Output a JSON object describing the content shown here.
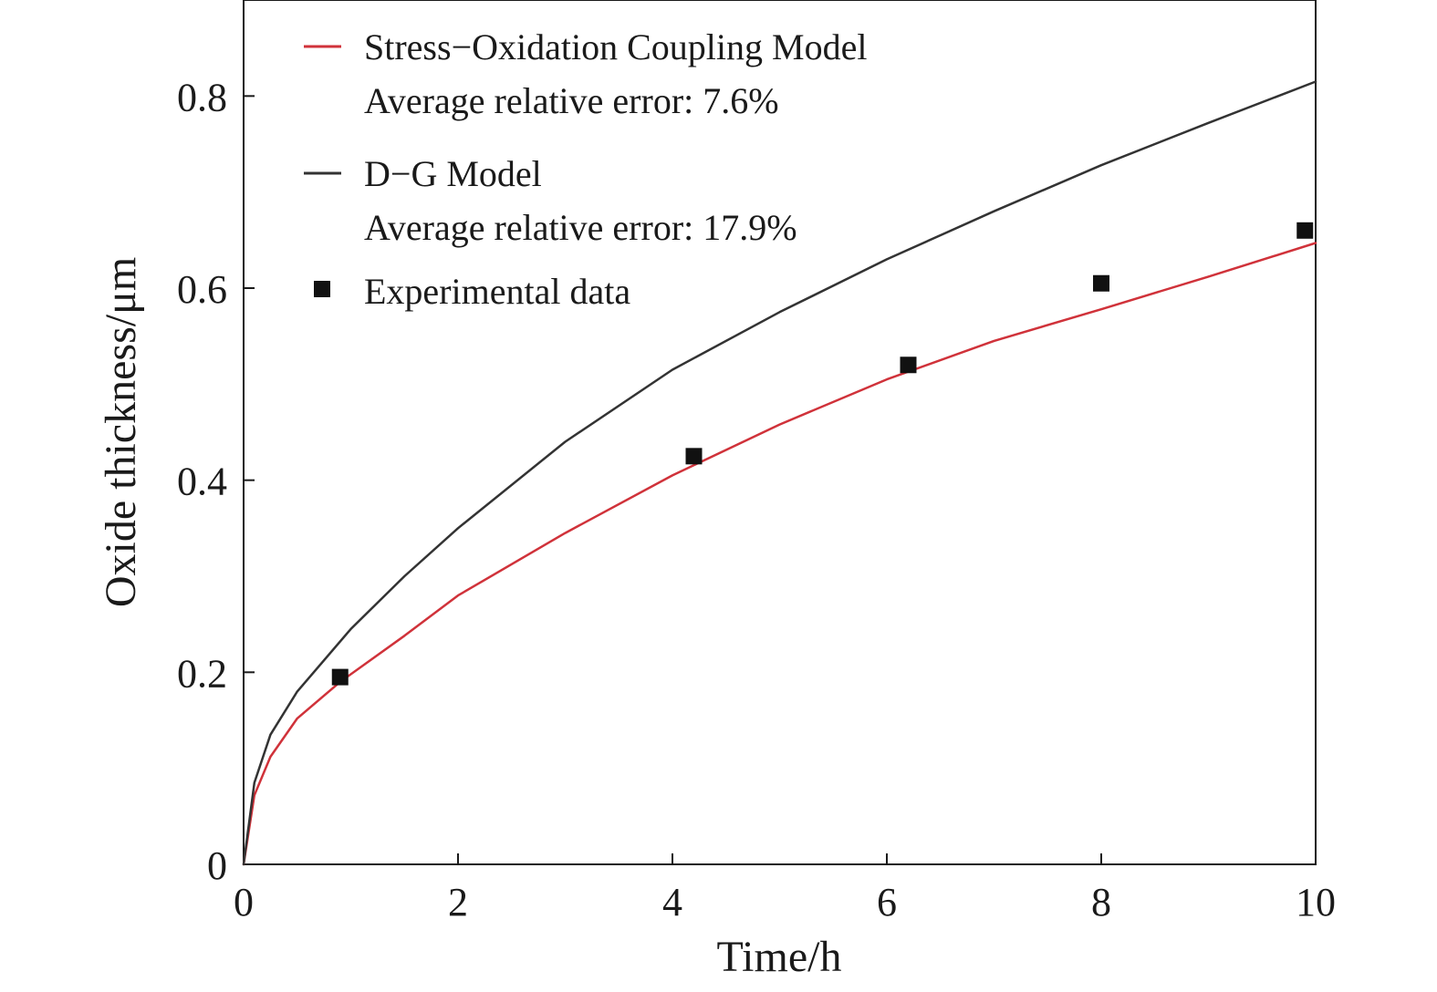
{
  "chart_data": {
    "type": "line",
    "xlabel": "Time/h",
    "ylabel": "Oxide thickness/μm",
    "xlim": [
      0,
      10
    ],
    "ylim": [
      0,
      0.9
    ],
    "x_ticks": [
      0,
      2,
      4,
      6,
      8,
      10
    ],
    "x_tick_labels": [
      "0",
      "2",
      "4",
      "6",
      "8",
      "10"
    ],
    "y_ticks": [
      0,
      0.2,
      0.4,
      0.6,
      0.8
    ],
    "y_tick_labels": [
      "0",
      "0.2",
      "0.4",
      "0.6",
      "0.8"
    ],
    "grid": false,
    "legend_position": "top-left",
    "series": [
      {
        "name": "Stress−Oxidation Coupling Model",
        "note": "Average relative error: 7.6%",
        "kind": "line",
        "color": "#d0323a",
        "x": [
          0,
          0.1,
          0.25,
          0.5,
          0.9,
          1.5,
          2,
          3,
          4,
          5,
          6,
          7,
          8,
          9,
          10
        ],
        "y": [
          0,
          0.072,
          0.112,
          0.152,
          0.19,
          0.238,
          0.28,
          0.345,
          0.405,
          0.458,
          0.505,
          0.545,
          0.578,
          0.612,
          0.647
        ]
      },
      {
        "name": "D−G Model",
        "note": "Average relative error: 17.9%",
        "kind": "line",
        "color": "#333333",
        "x": [
          0,
          0.1,
          0.25,
          0.5,
          1,
          1.5,
          2,
          3,
          4,
          5,
          6,
          7,
          8,
          9,
          10
        ],
        "y": [
          0,
          0.085,
          0.135,
          0.18,
          0.245,
          0.3,
          0.35,
          0.44,
          0.515,
          0.575,
          0.63,
          0.68,
          0.728,
          0.772,
          0.815
        ]
      },
      {
        "name": "Experimental data",
        "kind": "scatter",
        "marker": "square",
        "color": "#111111",
        "x": [
          0.9,
          4.2,
          6.2,
          8.0,
          9.9
        ],
        "y": [
          0.195,
          0.425,
          0.52,
          0.605,
          0.66
        ]
      }
    ]
  }
}
